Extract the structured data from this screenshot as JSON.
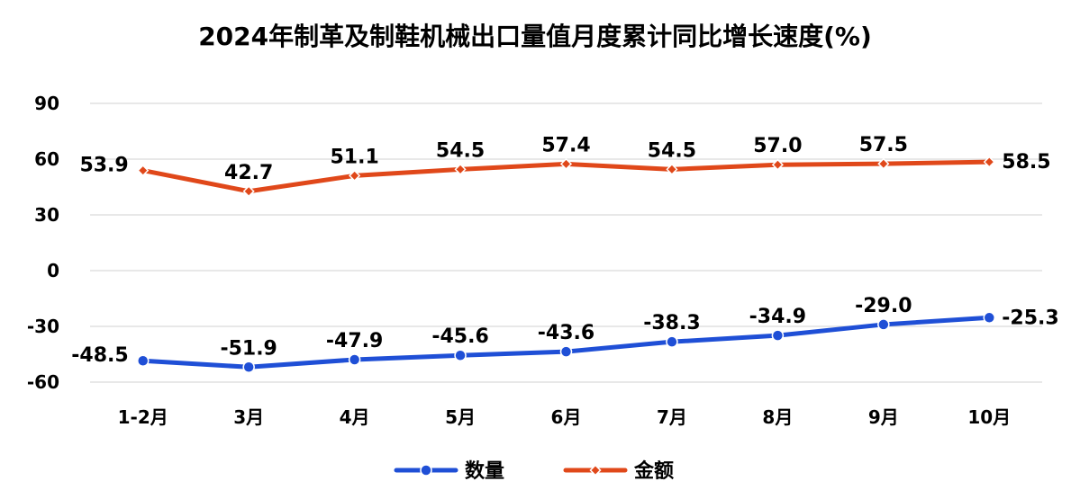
{
  "chart_data": {
    "type": "line",
    "title": "2024年制革及制鞋机械出口量值月度累计同比增长速度(%)",
    "categories": [
      "1-2月",
      "3月",
      "4月",
      "5月",
      "6月",
      "7月",
      "8月",
      "9月",
      "10月"
    ],
    "series": [
      {
        "name": "数量",
        "color": "#1f4fd6",
        "marker": "circle",
        "values": [
          -48.5,
          -51.9,
          -47.9,
          -45.6,
          -43.6,
          -38.3,
          -34.9,
          -29.0,
          -25.3
        ],
        "labels": [
          "-48.5",
          "-51.9",
          "-47.9",
          "-45.6",
          "-43.6",
          "-38.3",
          "-34.9",
          "-29.0",
          "-25.3"
        ]
      },
      {
        "name": "金额",
        "color": "#e0481a",
        "marker": "diamond",
        "values": [
          53.9,
          42.7,
          51.1,
          54.5,
          57.4,
          54.5,
          57.0,
          57.5,
          58.5
        ],
        "labels": [
          "53.9",
          "42.7",
          "51.1",
          "54.5",
          "57.4",
          "54.5",
          "57.0",
          "57.5",
          "58.5"
        ]
      }
    ],
    "ylim": [
      -60,
      90
    ],
    "yticks": [
      "90",
      "60",
      "30",
      "0",
      "-30",
      "-60"
    ],
    "ytick_values": [
      90,
      60,
      30,
      0,
      -30,
      -60
    ],
    "grid": true,
    "legend_position": "bottom-center"
  }
}
